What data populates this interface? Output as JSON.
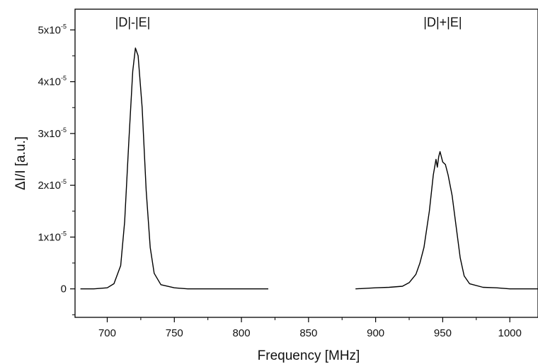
{
  "chart_data": {
    "type": "line",
    "title": "",
    "xlabel": "Frequency [MHz]",
    "ylabel": "ΔI/I [a.u.]",
    "xlim": [
      676,
      1021
    ],
    "ylim": [
      -5.5e-06,
      5.4e-05
    ],
    "grid": false,
    "legend": "none",
    "x_ticks": [
      {
        "value": 700,
        "label": "700"
      },
      {
        "value": 750,
        "label": "750"
      },
      {
        "value": 800,
        "label": "800"
      },
      {
        "value": 850,
        "label": "850"
      },
      {
        "value": 900,
        "label": "900"
      },
      {
        "value": 950,
        "label": "950"
      },
      {
        "value": 1000,
        "label": "1000"
      }
    ],
    "y_ticks": [
      {
        "value": 0,
        "base": "0",
        "exp": ""
      },
      {
        "value": 1e-05,
        "base": "1x10",
        "exp": "-5"
      },
      {
        "value": 2e-05,
        "base": "2x10",
        "exp": "-5"
      },
      {
        "value": 3e-05,
        "base": "3x10",
        "exp": "-5"
      },
      {
        "value": 4e-05,
        "base": "4x10",
        "exp": "-5"
      },
      {
        "value": 5e-05,
        "base": "5x10",
        "exp": "-5"
      }
    ],
    "annotations": [
      {
        "text": "|D|-|E|",
        "x": 719,
        "y": 5.15e-05
      },
      {
        "text": "|D|+|E|",
        "x": 950,
        "y": 5.15e-05
      }
    ],
    "series": [
      {
        "color": "#000000",
        "segments": [
          {
            "x": [
              680,
              690,
              700,
              705,
              710,
              713,
              716,
              719,
              721,
              723,
              726,
              729,
              732,
              735,
              740,
              750,
              760,
              780,
              800,
              820
            ],
            "y": [
              0.0,
              0.0,
              2e-07,
              1e-06,
              4.5e-06,
              1.3e-05,
              2.8e-05,
              4.2e-05,
              4.65e-05,
              4.5e-05,
              3.5e-05,
              1.9e-05,
              8e-06,
              3e-06,
              8e-07,
              2e-07,
              0.0,
              0.0,
              0.0,
              0.0
            ]
          },
          {
            "x": [
              885,
              900,
              910,
              920,
              925,
              930,
              933,
              936,
              940,
              943,
              945,
              946,
              947,
              948,
              950,
              952,
              954,
              957,
              960,
              963,
              966,
              970,
              980,
              990,
              1000,
              1010,
              1021
            ],
            "y": [
              0.0,
              2e-07,
              3e-07,
              5e-07,
              1.2e-06,
              2.8e-06,
              5e-06,
              8e-06,
              1.5e-05,
              2.2e-05,
              2.5e-05,
              2.35e-05,
              2.55e-05,
              2.65e-05,
              2.45e-05,
              2.4e-05,
              2.2e-05,
              1.8e-05,
              1.2e-05,
              6e-06,
              2.5e-06,
              1e-06,
              3e-07,
              2e-07,
              0.0,
              0.0,
              0.0
            ]
          }
        ]
      }
    ]
  }
}
